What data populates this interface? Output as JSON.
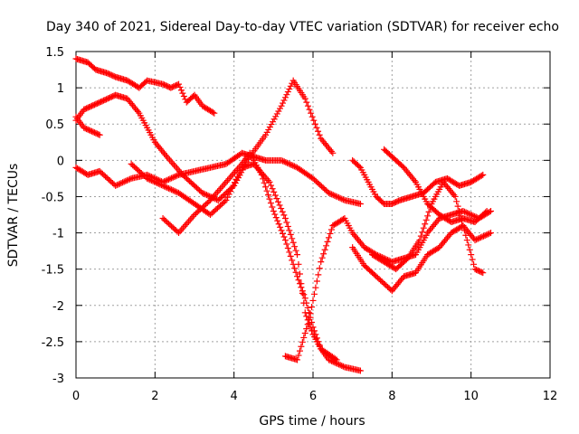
{
  "chart_data": {
    "type": "scatter",
    "title": "Day 340 of 2021, Sidereal Day-to-day VTEC variation (SDTVAR) for receiver echo",
    "xlabel": "GPS time / hours",
    "ylabel": "SDTVAR / TECUs",
    "xlim": [
      0,
      12
    ],
    "ylim": [
      -3,
      1.5
    ],
    "xticks": [
      0,
      2,
      4,
      6,
      8,
      10,
      12
    ],
    "yticks": [
      1.5,
      1,
      0.5,
      0,
      -0.5,
      -1,
      -1.5,
      -2,
      -2.5,
      -3
    ],
    "grid": true,
    "legend": "none",
    "marker": "plus",
    "color": "#ff0000",
    "series": [
      {
        "x": [
          0,
          0.3,
          0.5,
          0.8,
          1.0,
          1.3,
          1.6,
          1.8,
          2.2,
          2.4,
          2.6,
          2.8,
          3.0,
          3.2,
          3.5
        ],
        "y": [
          1.4,
          1.35,
          1.25,
          1.2,
          1.15,
          1.1,
          1.0,
          1.1,
          1.05,
          1.0,
          1.05,
          0.8,
          0.9,
          0.75,
          0.65
        ]
      },
      {
        "x": [
          0,
          0.2,
          0.4,
          0.6,
          0.8,
          1.0,
          1.3,
          1.6,
          1.8,
          2.0,
          2.3,
          2.7,
          3.2,
          3.6,
          4.0,
          4.4,
          4.8,
          5.2,
          5.5,
          5.8,
          6.2,
          6.5
        ],
        "y": [
          0.55,
          0.7,
          0.75,
          0.8,
          0.85,
          0.9,
          0.85,
          0.65,
          0.45,
          0.25,
          0.05,
          -0.2,
          -0.45,
          -0.55,
          -0.35,
          0.05,
          0.35,
          0.75,
          1.1,
          0.85,
          0.3,
          0.1
        ]
      },
      {
        "x": [
          0,
          0.2,
          0.4,
          0.6
        ],
        "y": [
          0.6,
          0.45,
          0.4,
          0.35
        ]
      },
      {
        "x": [
          0,
          0.3,
          0.6,
          1.0,
          1.4,
          1.8,
          2.2,
          2.6,
          3.0,
          3.4,
          3.8,
          4.2,
          4.5,
          4.8,
          5.2,
          5.6,
          6.0,
          6.4,
          6.8,
          7.2
        ],
        "y": [
          -0.1,
          -0.2,
          -0.15,
          -0.35,
          -0.25,
          -0.2,
          -0.3,
          -0.2,
          -0.15,
          -0.1,
          -0.05,
          0.1,
          0.05,
          0.0,
          0.0,
          -0.1,
          -0.25,
          -0.45,
          -0.55,
          -0.6
        ]
      },
      {
        "x": [
          1.4,
          1.8,
          2.2,
          2.6,
          3.0,
          3.4,
          3.8,
          4.2,
          4.5,
          4.9,
          5.3,
          5.6,
          5.8,
          6.0,
          6.2,
          6.6
        ],
        "y": [
          -0.05,
          -0.25,
          -0.35,
          -0.45,
          -0.6,
          -0.75,
          -0.55,
          -0.1,
          -0.05,
          -0.3,
          -0.8,
          -1.3,
          -2.1,
          -2.4,
          -2.6,
          -2.75
        ]
      },
      {
        "x": [
          2.2,
          2.6,
          3.0,
          3.4,
          3.8,
          4.2,
          4.4,
          4.7,
          5.0,
          5.3,
          5.6,
          5.8,
          6.0,
          6.2,
          6.4,
          6.8,
          7.2
        ],
        "y": [
          -0.8,
          -1.0,
          -0.75,
          -0.55,
          -0.3,
          -0.05,
          0.1,
          -0.2,
          -0.7,
          -1.1,
          -1.6,
          -1.9,
          -2.3,
          -2.6,
          -2.75,
          -2.85,
          -2.9
        ]
      },
      {
        "x": [
          5.3,
          5.6,
          5.9,
          6.2,
          6.5,
          6.8,
          7.0,
          7.3,
          7.6,
          8.0,
          8.3,
          8.6,
          8.9,
          9.2,
          9.5,
          9.8,
          10.2,
          10.5
        ],
        "y": [
          -2.7,
          -2.75,
          -2.2,
          -1.4,
          -0.9,
          -0.8,
          -1.0,
          -1.2,
          -1.3,
          -1.4,
          -1.35,
          -1.3,
          -1.0,
          -0.8,
          -0.75,
          -0.7,
          -0.8,
          -0.7
        ]
      },
      {
        "x": [
          7.0,
          7.2,
          7.4,
          7.6,
          7.8,
          8.0,
          8.2,
          8.5,
          8.8,
          9.1,
          9.4,
          9.7,
          10.0,
          10.3
        ],
        "y": [
          0.0,
          -0.1,
          -0.3,
          -0.5,
          -0.6,
          -0.6,
          -0.55,
          -0.5,
          -0.45,
          -0.3,
          -0.25,
          -0.35,
          -0.3,
          -0.2
        ]
      },
      {
        "x": [
          7.8,
          8.0,
          8.3,
          8.6,
          8.9,
          9.2,
          9.5,
          9.8,
          10.1,
          10.4
        ],
        "y": [
          0.15,
          0.05,
          -0.1,
          -0.3,
          -0.6,
          -0.75,
          -0.85,
          -0.8,
          -0.85,
          -0.7
        ]
      },
      {
        "x": [
          7.0,
          7.3,
          7.6,
          8.0,
          8.3,
          8.6,
          8.9,
          9.2,
          9.5,
          9.8,
          10.1,
          10.5
        ],
        "y": [
          -1.2,
          -1.45,
          -1.6,
          -1.8,
          -1.6,
          -1.55,
          -1.3,
          -1.2,
          -1.0,
          -0.9,
          -1.1,
          -1.0
        ]
      },
      {
        "x": [
          7.5,
          7.8,
          8.1,
          8.4,
          8.7,
          9.0,
          9.3,
          9.6,
          9.9,
          10.1,
          10.3
        ],
        "y": [
          -1.3,
          -1.4,
          -1.5,
          -1.35,
          -1.1,
          -0.6,
          -0.3,
          -0.5,
          -1.1,
          -1.5,
          -1.55
        ]
      }
    ]
  }
}
